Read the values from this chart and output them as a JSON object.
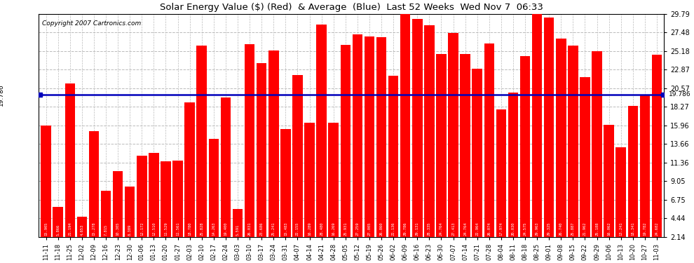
{
  "title": "Solar Energy Value ($) (Red)  & Average  (Blue)  Last 52 Weeks  Wed Nov 7  06:33",
  "copyright": "Copyright 2007 Cartronics.com",
  "average_value": 19.786,
  "average_label": "19.786",
  "ylim": [
    2.14,
    29.79
  ],
  "yticks": [
    2.14,
    4.44,
    6.75,
    9.05,
    11.36,
    13.66,
    15.96,
    18.27,
    20.57,
    22.87,
    25.18,
    27.48,
    29.79
  ],
  "bar_color": "#ff0000",
  "average_line_color": "#0000bb",
  "background_color": "#ffffff",
  "grid_color": "#bbbbbb",
  "categories": [
    "11-11",
    "11-18",
    "11-25",
    "12-02",
    "12-09",
    "12-16",
    "12-23",
    "12-30",
    "01-06",
    "01-13",
    "01-20",
    "01-27",
    "02-03",
    "02-10",
    "02-17",
    "02-24",
    "03-03",
    "03-10",
    "03-17",
    "03-24",
    "03-31",
    "04-07",
    "04-14",
    "04-21",
    "04-28",
    "05-05",
    "05-12",
    "05-19",
    "05-26",
    "06-02",
    "06-09",
    "06-16",
    "06-23",
    "06-30",
    "07-07",
    "07-14",
    "07-21",
    "07-28",
    "08-04",
    "08-11",
    "08-18",
    "08-25",
    "09-01",
    "09-08",
    "09-15",
    "09-22",
    "09-29",
    "10-06",
    "10-13",
    "10-20",
    "10-27",
    "11-03"
  ],
  "values": [
    15.905,
    5.866,
    21.194,
    4.653,
    15.278,
    7.815,
    10.305,
    8.389,
    12.172,
    12.51,
    11.529,
    11.561,
    18.78,
    25.828,
    14.263,
    19.4,
    5.591,
    26.031,
    23.686,
    25.241,
    15.483,
    22.155,
    16.289,
    28.48,
    16.269,
    25.931,
    27.259,
    27.005,
    26.86,
    22.136,
    29.786,
    29.131,
    28.335,
    24.764,
    27.413,
    24.764,
    22.964,
    26.074,
    17.974,
    20.03,
    24.575,
    29.963,
    29.325,
    26.74,
    25.887,
    21.962,
    25.188,
    16.062,
    13.241,
    18.341,
    19.782,
    24.682
  ]
}
